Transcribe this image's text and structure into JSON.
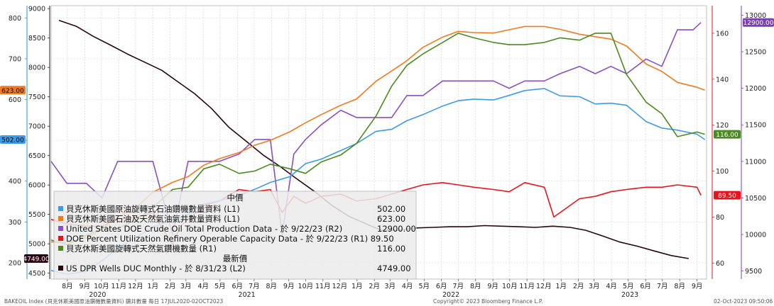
{
  "footer": {
    "left": "BAKEOIL Index (貝克休斯美國原油鑽機數量資料) 鑽井數量  每日 17JUL2020-02OCT2023",
    "center": "Copyright© 2023 Bloomberg Finance L.P.",
    "right": "02-Oct-2023 09:50:06"
  },
  "legend": {
    "header_current": "中價",
    "header_latest": "最新價",
    "entries": [
      {
        "key": "oil_rigs",
        "label": "貝克休斯美國原油旋轉式石油鑽機數量資料 (L1)",
        "value": "502.00",
        "color": "#3c9be8"
      },
      {
        "key": "total_rigs",
        "label": "貝克休斯美國石油及天然氣油氣井數量資料 (L1)",
        "value": "623.00",
        "color": "#f07a1c"
      },
      {
        "key": "production",
        "label": "United States DOE Crude Oil Total Production Data -  於 9/22/23 (R2)",
        "value": "12900.00",
        "color": "#8a4fc0"
      },
      {
        "key": "utilization",
        "label": "DOE Percent Utilization Refinery Operable Capacity Data -  於 9/22/23  (R1) 89.50",
        "value": "",
        "color": "#e8141c"
      },
      {
        "key": "gas_rigs",
        "label": "貝克休斯美國旋轉式天然氣鑽機數量  (R1)",
        "value": "116.00",
        "color": "#4a8a1e"
      },
      {
        "key": "duc",
        "label": "US DPR Wells DUC Monthly -  於 8/31/23  (L2)",
        "value": "4749.00",
        "color": "#2a0410"
      }
    ]
  },
  "tags": {
    "oil_rigs": "502.00",
    "total_rigs": "623.00",
    "duc": "4749.00",
    "production": "12900.00",
    "gas_rigs": "116.00",
    "utilization": "89.50"
  },
  "chart_data": {
    "type": "line",
    "x_range": [
      "2020-07-17",
      "2023-10-02"
    ],
    "axes": {
      "L1": {
        "ticks": [
          200,
          300,
          400,
          500,
          600,
          700,
          800
        ],
        "range": [
          160,
          830
        ]
      },
      "L2": {
        "ticks": [
          4500,
          5000,
          5500,
          6000,
          6500,
          7000,
          7500,
          8000,
          8500,
          9000
        ],
        "range": [
          4400,
          9050
        ]
      },
      "R1": {
        "ticks": [
          60,
          80,
          100,
          120,
          140,
          160
        ],
        "range": [
          53,
          172
        ]
      },
      "R2": {
        "ticks": [
          9500,
          10000,
          10500,
          11000,
          11500,
          12000,
          12500,
          13000
        ],
        "range": [
          9390,
          13130
        ]
      }
    },
    "x_tick_months": [
      "7月",
      "8月",
      "9月",
      "10月",
      "11月",
      "12月",
      "1月",
      "2月",
      "3月",
      "4月",
      "5月",
      "6月",
      "7月",
      "8月",
      "9月",
      "10月",
      "11月",
      "12月",
      "1月",
      "2月",
      "3月",
      "4月",
      "5月",
      "6月",
      "7月",
      "8月",
      "9月",
      "10月",
      "11月",
      "12月",
      "1月",
      "2月",
      "3月",
      "4月",
      "5月",
      "6月",
      "7月",
      "8月",
      "9月"
    ],
    "x_year_labels": [
      "2020",
      "2021",
      "2022",
      "2023"
    ],
    "series": [
      {
        "key": "oil_rigs",
        "axis": "L1",
        "points": [
          [
            "2020-07-17",
            181
          ],
          [
            "2020-08-14",
            172
          ],
          [
            "2020-09-18",
            179
          ],
          [
            "2020-10-16",
            205
          ],
          [
            "2020-11-13",
            236
          ],
          [
            "2020-12-18",
            264
          ],
          [
            "2021-01-15",
            287
          ],
          [
            "2021-02-19",
            305
          ],
          [
            "2021-03-19",
            318
          ],
          [
            "2021-04-16",
            344
          ],
          [
            "2021-05-14",
            352
          ],
          [
            "2021-06-18",
            365
          ],
          [
            "2021-07-16",
            380
          ],
          [
            "2021-08-13",
            397
          ],
          [
            "2021-09-17",
            411
          ],
          [
            "2021-10-15",
            443
          ],
          [
            "2021-11-12",
            454
          ],
          [
            "2021-12-17",
            475
          ],
          [
            "2022-01-14",
            492
          ],
          [
            "2022-02-18",
            522
          ],
          [
            "2022-03-18",
            527
          ],
          [
            "2022-04-14",
            548
          ],
          [
            "2022-05-13",
            563
          ],
          [
            "2022-06-17",
            584
          ],
          [
            "2022-07-15",
            597
          ],
          [
            "2022-08-12",
            601
          ],
          [
            "2022-09-16",
            599
          ],
          [
            "2022-10-14",
            610
          ],
          [
            "2022-11-11",
            622
          ],
          [
            "2022-12-16",
            627
          ],
          [
            "2023-01-13",
            609
          ],
          [
            "2023-02-17",
            607
          ],
          [
            "2023-03-17",
            589
          ],
          [
            "2023-04-14",
            591
          ],
          [
            "2023-05-12",
            586
          ],
          [
            "2023-06-16",
            546
          ],
          [
            "2023-07-14",
            530
          ],
          [
            "2023-08-11",
            525
          ],
          [
            "2023-09-15",
            515
          ],
          [
            "2023-09-29",
            502
          ]
        ]
      },
      {
        "key": "total_rigs",
        "axis": "L1",
        "points": [
          [
            "2020-07-17",
            251
          ],
          [
            "2020-08-14",
            250
          ],
          [
            "2020-09-18",
            261
          ],
          [
            "2020-10-16",
            282
          ],
          [
            "2020-11-13",
            312
          ],
          [
            "2020-12-18",
            338
          ],
          [
            "2021-01-15",
            373
          ],
          [
            "2021-02-19",
            397
          ],
          [
            "2021-03-19",
            411
          ],
          [
            "2021-04-16",
            439
          ],
          [
            "2021-05-14",
            455
          ],
          [
            "2021-06-18",
            470
          ],
          [
            "2021-07-16",
            488
          ],
          [
            "2021-08-13",
            500
          ],
          [
            "2021-09-17",
            521
          ],
          [
            "2021-10-15",
            543
          ],
          [
            "2021-11-12",
            563
          ],
          [
            "2021-12-17",
            586
          ],
          [
            "2022-01-14",
            601
          ],
          [
            "2022-02-18",
            645
          ],
          [
            "2022-03-18",
            670
          ],
          [
            "2022-04-14",
            695
          ],
          [
            "2022-05-13",
            728
          ],
          [
            "2022-06-17",
            753
          ],
          [
            "2022-07-15",
            767
          ],
          [
            "2022-08-12",
            764
          ],
          [
            "2022-09-16",
            763
          ],
          [
            "2022-10-14",
            771
          ],
          [
            "2022-11-11",
            779
          ],
          [
            "2022-12-16",
            779
          ],
          [
            "2023-01-13",
            772
          ],
          [
            "2023-02-17",
            760
          ],
          [
            "2023-03-17",
            754
          ],
          [
            "2023-04-14",
            748
          ],
          [
            "2023-05-12",
            731
          ],
          [
            "2023-06-16",
            687
          ],
          [
            "2023-07-14",
            669
          ],
          [
            "2023-08-11",
            642
          ],
          [
            "2023-09-15",
            630
          ],
          [
            "2023-09-29",
            623
          ]
        ]
      },
      {
        "key": "production",
        "axis": "R2",
        "points": [
          [
            "2020-07-17",
            11000
          ],
          [
            "2020-08-14",
            10700
          ],
          [
            "2020-09-18",
            10700
          ],
          [
            "2020-10-16",
            10500
          ],
          [
            "2020-11-13",
            11000
          ],
          [
            "2020-12-18",
            11000
          ],
          [
            "2021-01-15",
            11000
          ],
          [
            "2021-02-19",
            10000
          ],
          [
            "2021-03-19",
            11000
          ],
          [
            "2021-04-16",
            11000
          ],
          [
            "2021-05-14",
            11000
          ],
          [
            "2021-06-18",
            11100
          ],
          [
            "2021-07-16",
            11300
          ],
          [
            "2021-08-13",
            11300
          ],
          [
            "2021-09-03",
            10000
          ],
          [
            "2021-09-24",
            11100
          ],
          [
            "2021-10-15",
            11300
          ],
          [
            "2021-11-12",
            11500
          ],
          [
            "2021-12-17",
            11700
          ],
          [
            "2022-01-14",
            11600
          ],
          [
            "2022-02-18",
            11600
          ],
          [
            "2022-03-18",
            11600
          ],
          [
            "2022-04-14",
            11900
          ],
          [
            "2022-05-13",
            11900
          ],
          [
            "2022-06-17",
            12100
          ],
          [
            "2022-07-15",
            12100
          ],
          [
            "2022-08-12",
            12100
          ],
          [
            "2022-09-16",
            12100
          ],
          [
            "2022-10-14",
            12000
          ],
          [
            "2022-11-11",
            12100
          ],
          [
            "2022-12-16",
            12100
          ],
          [
            "2023-01-13",
            12200
          ],
          [
            "2023-02-17",
            12300
          ],
          [
            "2023-03-17",
            12200
          ],
          [
            "2023-04-14",
            12300
          ],
          [
            "2023-05-12",
            12200
          ],
          [
            "2023-06-16",
            12400
          ],
          [
            "2023-07-14",
            12300
          ],
          [
            "2023-08-11",
            12800
          ],
          [
            "2023-09-08",
            12800
          ],
          [
            "2023-09-22",
            12900
          ]
        ]
      },
      {
        "key": "utilization",
        "axis": "R1",
        "points": [
          [
            "2020-07-17",
            79
          ],
          [
            "2020-08-14",
            77
          ],
          [
            "2020-09-18",
            76
          ],
          [
            "2020-10-16",
            76
          ],
          [
            "2020-11-13",
            79
          ],
          [
            "2020-12-18",
            80
          ],
          [
            "2021-01-15",
            82
          ],
          [
            "2021-02-19",
            68
          ],
          [
            "2021-03-05",
            76
          ],
          [
            "2021-04-16",
            85
          ],
          [
            "2021-05-14",
            87
          ],
          [
            "2021-06-18",
            92
          ],
          [
            "2021-07-16",
            91
          ],
          [
            "2021-08-13",
            92
          ],
          [
            "2021-09-03",
            82
          ],
          [
            "2021-09-24",
            89
          ],
          [
            "2021-10-15",
            86
          ],
          [
            "2021-11-12",
            89
          ],
          [
            "2021-12-17",
            90
          ],
          [
            "2022-01-14",
            87
          ],
          [
            "2022-02-18",
            88
          ],
          [
            "2022-03-18",
            90
          ],
          [
            "2022-04-14",
            92
          ],
          [
            "2022-05-13",
            94
          ],
          [
            "2022-06-17",
            95
          ],
          [
            "2022-07-15",
            94
          ],
          [
            "2022-08-12",
            93
          ],
          [
            "2022-09-16",
            92
          ],
          [
            "2022-10-14",
            91
          ],
          [
            "2022-11-11",
            95
          ],
          [
            "2022-12-16",
            93
          ],
          [
            "2023-01-02",
            80
          ],
          [
            "2023-02-17",
            88
          ],
          [
            "2023-03-17",
            89
          ],
          [
            "2023-04-14",
            91
          ],
          [
            "2023-05-12",
            92
          ],
          [
            "2023-06-16",
            93
          ],
          [
            "2023-07-14",
            93
          ],
          [
            "2023-08-11",
            94
          ],
          [
            "2023-09-15",
            93
          ],
          [
            "2023-09-22",
            89.5
          ]
        ]
      },
      {
        "key": "gas_rigs",
        "axis": "R1",
        "points": [
          [
            "2020-07-17",
            70
          ],
          [
            "2020-08-14",
            68
          ],
          [
            "2020-09-18",
            72
          ],
          [
            "2020-10-16",
            75
          ],
          [
            "2020-11-13",
            75
          ],
          [
            "2020-12-18",
            79
          ],
          [
            "2021-01-15",
            84
          ],
          [
            "2021-02-19",
            92
          ],
          [
            "2021-03-19",
            93
          ],
          [
            "2021-04-16",
            101
          ],
          [
            "2021-05-14",
            103
          ],
          [
            "2021-06-18",
            99
          ],
          [
            "2021-07-16",
            100
          ],
          [
            "2021-08-13",
            103
          ],
          [
            "2021-09-17",
            101
          ],
          [
            "2021-10-15",
            99
          ],
          [
            "2021-11-12",
            104
          ],
          [
            "2021-12-17",
            107
          ],
          [
            "2022-01-14",
            112
          ],
          [
            "2022-02-18",
            124
          ],
          [
            "2022-03-18",
            137
          ],
          [
            "2022-04-14",
            146
          ],
          [
            "2022-05-13",
            151
          ],
          [
            "2022-06-17",
            156
          ],
          [
            "2022-07-15",
            160
          ],
          [
            "2022-08-12",
            158
          ],
          [
            "2022-09-16",
            156
          ],
          [
            "2022-10-14",
            155
          ],
          [
            "2022-11-11",
            155
          ],
          [
            "2022-12-16",
            156
          ],
          [
            "2023-01-13",
            158
          ],
          [
            "2023-02-17",
            157
          ],
          [
            "2023-03-17",
            160
          ],
          [
            "2023-04-14",
            160
          ],
          [
            "2023-05-12",
            142
          ],
          [
            "2023-06-16",
            130
          ],
          [
            "2023-07-14",
            125
          ],
          [
            "2023-08-11",
            115
          ],
          [
            "2023-09-15",
            117
          ],
          [
            "2023-09-29",
            116
          ]
        ]
      },
      {
        "key": "duc",
        "axis": "L2",
        "points": [
          [
            "2020-07-31",
            8800
          ],
          [
            "2020-08-31",
            8700
          ],
          [
            "2020-09-30",
            8530
          ],
          [
            "2020-10-31",
            8380
          ],
          [
            "2020-11-30",
            8230
          ],
          [
            "2020-12-31",
            8090
          ],
          [
            "2021-01-31",
            7950
          ],
          [
            "2021-02-28",
            7760
          ],
          [
            "2021-03-31",
            7550
          ],
          [
            "2021-04-30",
            7300
          ],
          [
            "2021-05-31",
            6980
          ],
          [
            "2021-06-30",
            6750
          ],
          [
            "2021-07-31",
            6510
          ],
          [
            "2021-08-31",
            6310
          ],
          [
            "2021-09-30",
            6100
          ],
          [
            "2021-10-31",
            5890
          ],
          [
            "2021-11-30",
            5660
          ],
          [
            "2021-12-31",
            5470
          ],
          [
            "2022-01-31",
            5340
          ],
          [
            "2022-02-28",
            5230
          ],
          [
            "2022-03-31",
            5230
          ],
          [
            "2022-04-30",
            5270
          ],
          [
            "2022-05-31",
            5280
          ],
          [
            "2022-06-30",
            5290
          ],
          [
            "2022-07-31",
            5290
          ],
          [
            "2022-08-31",
            5310
          ],
          [
            "2022-09-30",
            5300
          ],
          [
            "2022-10-31",
            5290
          ],
          [
            "2022-11-30",
            5280
          ],
          [
            "2022-12-31",
            5300
          ],
          [
            "2023-01-31",
            5280
          ],
          [
            "2023-02-28",
            5230
          ],
          [
            "2023-03-31",
            5130
          ],
          [
            "2023-04-30",
            5030
          ],
          [
            "2023-05-31",
            4960
          ],
          [
            "2023-06-30",
            4880
          ],
          [
            "2023-07-31",
            4800
          ],
          [
            "2023-08-31",
            4749
          ]
        ]
      }
    ]
  }
}
